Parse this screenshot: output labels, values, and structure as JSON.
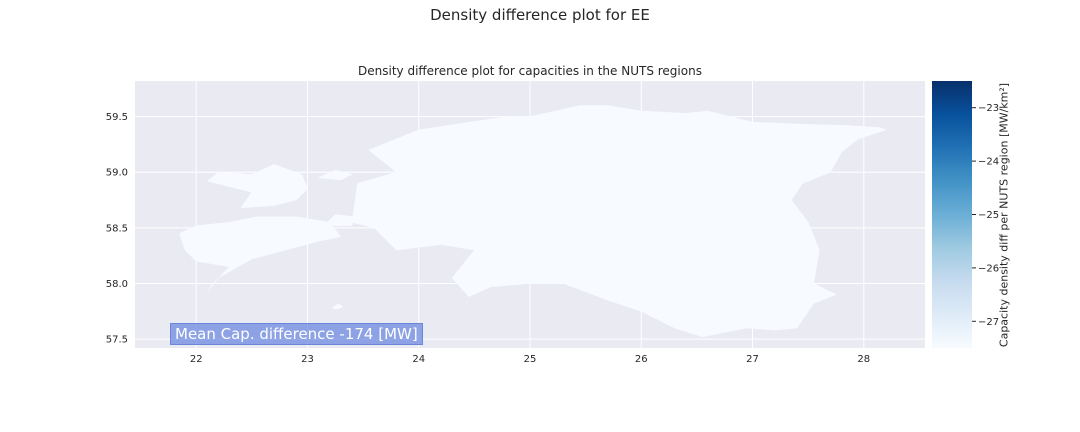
{
  "figure": {
    "suptitle": "Density difference plot for EE",
    "title": "Density difference plot for capacities in the NUTS regions",
    "annotation": "Mean Cap. difference -174 [MW]"
  },
  "chart_data": {
    "type": "map",
    "region": "EE",
    "xlim": [
      21.45,
      28.55
    ],
    "ylim": [
      57.42,
      59.82
    ],
    "xticks": [
      22,
      23,
      24,
      25,
      26,
      27,
      28
    ],
    "yticks": [
      57.5,
      58.0,
      58.5,
      59.0,
      59.5
    ],
    "xtick_labels": [
      "22",
      "23",
      "24",
      "25",
      "26",
      "27",
      "28"
    ],
    "ytick_labels": [
      "57.5",
      "58.0",
      "58.5",
      "59.0",
      "59.5"
    ],
    "grid": true,
    "colormap": "Blues",
    "region_fill": "#f7fbff",
    "colorbar": {
      "label": "Capacity density diff per NUTS region [MW/km²]",
      "range": [
        -27.5,
        -22.5
      ],
      "ticks": [
        -27,
        -26,
        -25,
        -24,
        -23
      ],
      "tick_labels": [
        "−27",
        "−26",
        "−25",
        "−24",
        "−23"
      ]
    },
    "regions": [
      {
        "name": "mainland",
        "outline": [
          [
            23.4,
            58.55
          ],
          [
            23.45,
            58.9
          ],
          [
            23.8,
            59.0
          ],
          [
            23.55,
            59.2
          ],
          [
            24.0,
            59.38
          ],
          [
            24.45,
            59.45
          ],
          [
            24.8,
            59.5
          ],
          [
            25.0,
            59.5
          ],
          [
            25.45,
            59.6
          ],
          [
            25.7,
            59.6
          ],
          [
            26.0,
            59.55
          ],
          [
            26.4,
            59.53
          ],
          [
            26.6,
            59.55
          ],
          [
            27.0,
            59.45
          ],
          [
            27.5,
            59.43
          ],
          [
            27.85,
            59.42
          ],
          [
            28.15,
            59.4
          ],
          [
            28.2,
            59.38
          ],
          [
            27.95,
            59.3
          ],
          [
            27.8,
            59.18
          ],
          [
            27.7,
            59.0
          ],
          [
            27.45,
            58.9
          ],
          [
            27.35,
            58.75
          ],
          [
            27.5,
            58.55
          ],
          [
            27.6,
            58.3
          ],
          [
            27.55,
            58.0
          ],
          [
            27.75,
            57.9
          ],
          [
            27.55,
            57.82
          ],
          [
            27.4,
            57.6
          ],
          [
            27.2,
            57.58
          ],
          [
            26.95,
            57.6
          ],
          [
            26.7,
            57.55
          ],
          [
            26.55,
            57.52
          ],
          [
            26.3,
            57.6
          ],
          [
            26.0,
            57.75
          ],
          [
            25.7,
            57.85
          ],
          [
            25.3,
            58.0
          ],
          [
            25.0,
            58.0
          ],
          [
            24.65,
            57.97
          ],
          [
            24.45,
            57.88
          ],
          [
            24.3,
            58.05
          ],
          [
            24.5,
            58.3
          ],
          [
            24.2,
            58.35
          ],
          [
            23.8,
            58.3
          ],
          [
            23.6,
            58.5
          ]
        ]
      },
      {
        "name": "saaremaa",
        "outline": [
          [
            22.1,
            57.92
          ],
          [
            22.15,
            58.0
          ],
          [
            22.3,
            58.15
          ],
          [
            22.0,
            58.2
          ],
          [
            21.9,
            58.3
          ],
          [
            21.85,
            58.45
          ],
          [
            22.0,
            58.52
          ],
          [
            22.3,
            58.55
          ],
          [
            22.55,
            58.6
          ],
          [
            22.9,
            58.6
          ],
          [
            23.2,
            58.55
          ],
          [
            23.3,
            58.42
          ],
          [
            23.1,
            58.38
          ],
          [
            22.8,
            58.3
          ],
          [
            22.5,
            58.22
          ],
          [
            22.2,
            58.05
          ]
        ]
      },
      {
        "name": "hiiumaa",
        "outline": [
          [
            22.4,
            58.68
          ],
          [
            22.5,
            58.82
          ],
          [
            22.1,
            58.92
          ],
          [
            22.2,
            59.0
          ],
          [
            22.5,
            58.98
          ],
          [
            22.7,
            59.07
          ],
          [
            22.95,
            58.98
          ],
          [
            23.0,
            58.85
          ],
          [
            22.9,
            58.75
          ],
          [
            22.7,
            58.7
          ]
        ]
      },
      {
        "name": "muhu",
        "outline": [
          [
            23.15,
            58.52
          ],
          [
            23.25,
            58.62
          ],
          [
            23.42,
            58.6
          ],
          [
            23.4,
            58.52
          ]
        ]
      },
      {
        "name": "vormsi",
        "outline": [
          [
            23.1,
            58.95
          ],
          [
            23.25,
            59.02
          ],
          [
            23.4,
            58.98
          ],
          [
            23.3,
            58.93
          ]
        ]
      },
      {
        "name": "ruhnu",
        "outline": [
          [
            23.22,
            57.78
          ],
          [
            23.28,
            57.82
          ],
          [
            23.32,
            57.79
          ],
          [
            23.27,
            57.77
          ]
        ]
      }
    ]
  }
}
